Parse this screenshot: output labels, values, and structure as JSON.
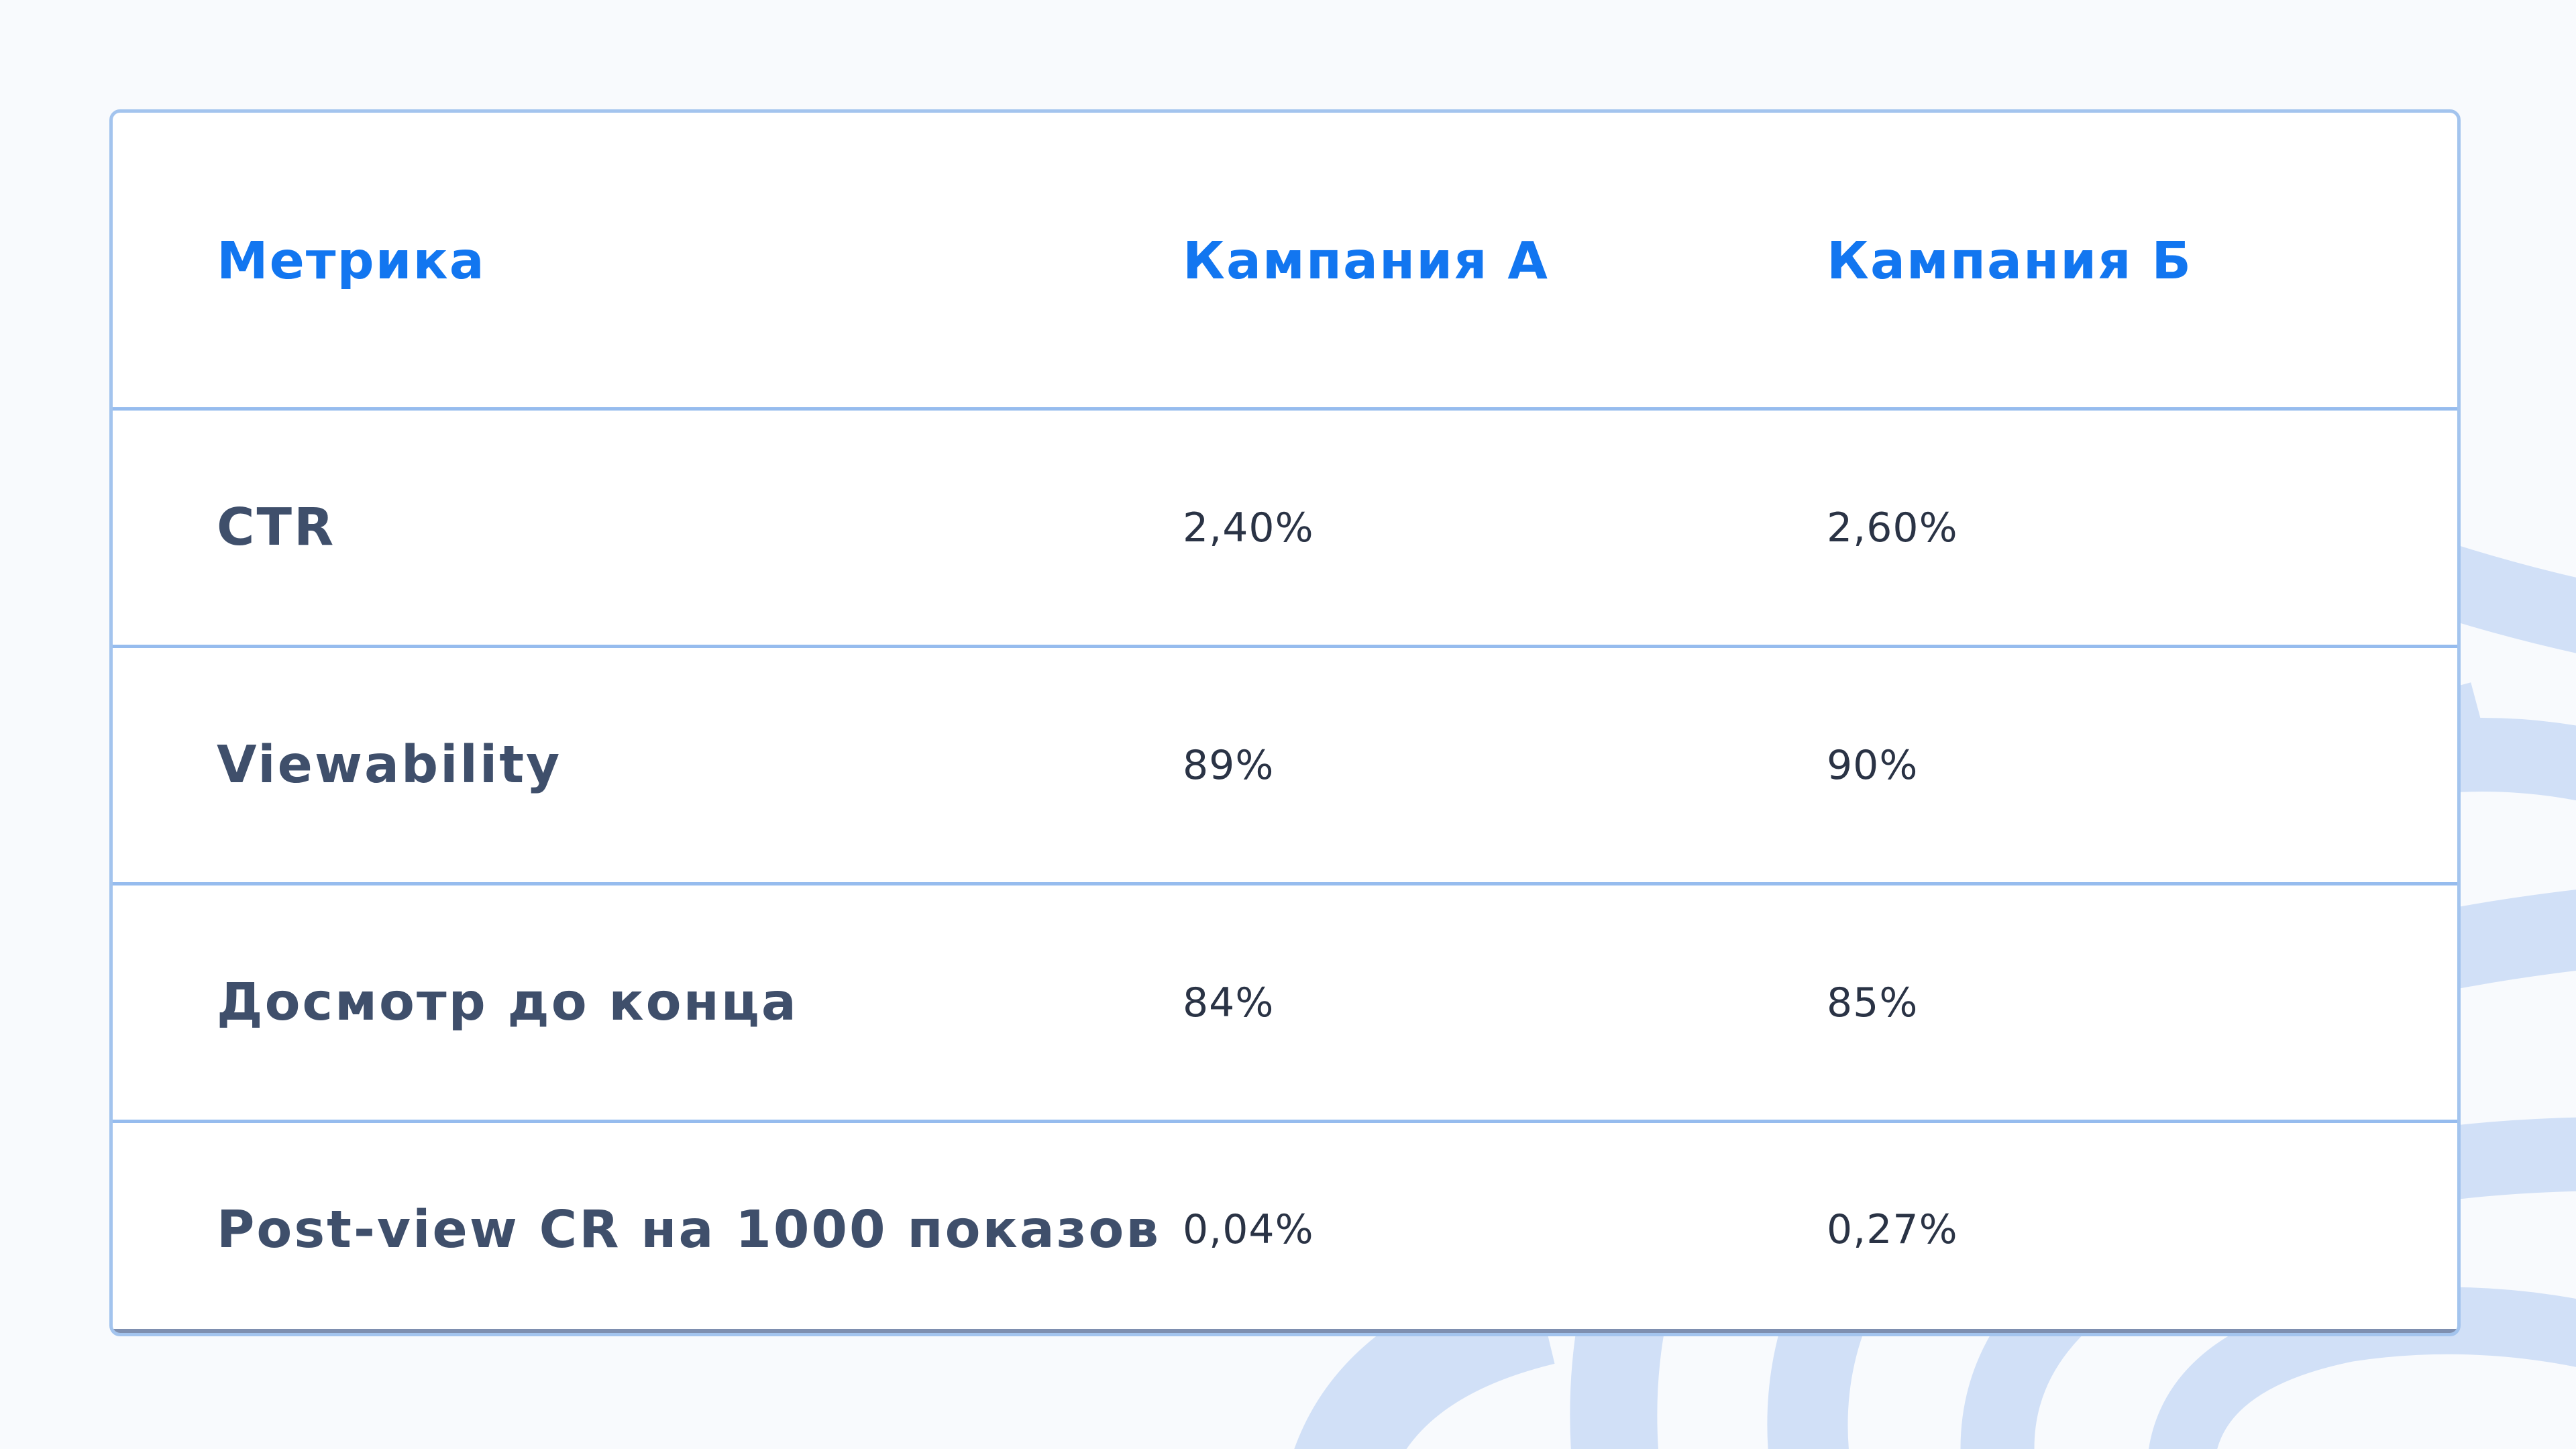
{
  "colors": {
    "background": "#f8fafd",
    "card_background": "#ffffff",
    "card_border": "#a3c4ee",
    "header_text": "#1276f0",
    "metric_text": "#3f4f6b",
    "value_text": "#2a3345",
    "decoration": "#d1e0f7"
  },
  "table": {
    "headers": [
      "Метрика",
      "Кампания А",
      "Кампания Б"
    ],
    "rows": [
      {
        "metric": "CTR",
        "campaign_a": "2,40%",
        "campaign_b": "2,60%"
      },
      {
        "metric": "Viewability",
        "campaign_a": "89%",
        "campaign_b": "90%"
      },
      {
        "metric": "Досмотр до конца",
        "campaign_a": "84%",
        "campaign_b": "85%"
      },
      {
        "metric": "Post-view CR на 1000 показов",
        "campaign_a": "0,04%",
        "campaign_b": "0,27%"
      }
    ]
  }
}
